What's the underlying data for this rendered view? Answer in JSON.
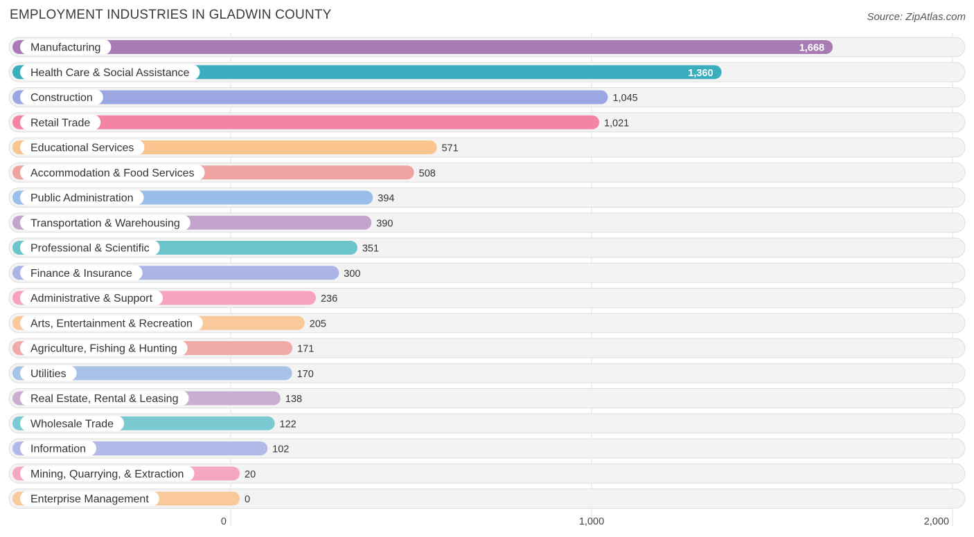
{
  "chart_data": {
    "type": "bar",
    "orientation": "horizontal",
    "title": "EMPLOYMENT INDUSTRIES IN GLADWIN COUNTY",
    "source": "Source: ZipAtlas.com",
    "xlim": [
      0,
      2000
    ],
    "xticks": [
      0,
      1000,
      2000
    ],
    "xtick_labels": [
      "0",
      "1,000",
      "2,000"
    ],
    "grid": true,
    "categories": [
      "Manufacturing",
      "Health Care & Social Assistance",
      "Construction",
      "Retail Trade",
      "Educational Services",
      "Accommodation & Food Services",
      "Public Administration",
      "Transportation & Warehousing",
      "Professional & Scientific",
      "Finance & Insurance",
      "Administrative & Support",
      "Arts, Entertainment & Recreation",
      "Agriculture, Fishing & Hunting",
      "Utilities",
      "Real Estate, Rental & Leasing",
      "Wholesale Trade",
      "Information",
      "Mining, Quarrying, & Extraction",
      "Enterprise Management"
    ],
    "values": [
      1668,
      1360,
      1045,
      1021,
      571,
      508,
      394,
      390,
      351,
      300,
      236,
      205,
      171,
      170,
      138,
      122,
      102,
      20,
      0
    ],
    "value_labels": [
      "1,668",
      "1,360",
      "1,045",
      "1,021",
      "571",
      "508",
      "394",
      "390",
      "351",
      "300",
      "236",
      "205",
      "171",
      "170",
      "138",
      "122",
      "102",
      "20",
      "0"
    ],
    "colors": [
      "#a97bb5",
      "#3aadbe",
      "#9aa7e2",
      "#f484a5",
      "#f9c48e",
      "#eea3a0",
      "#9abde9",
      "#c2a4cd",
      "#6cc4cb",
      "#aab4e6",
      "#f7a3bd",
      "#f9c99b",
      "#f0aaaa",
      "#a7c3e8",
      "#c9aed1",
      "#7ccad1",
      "#b2b9e8",
      "#f5a7c0",
      "#f9c99b"
    ]
  }
}
